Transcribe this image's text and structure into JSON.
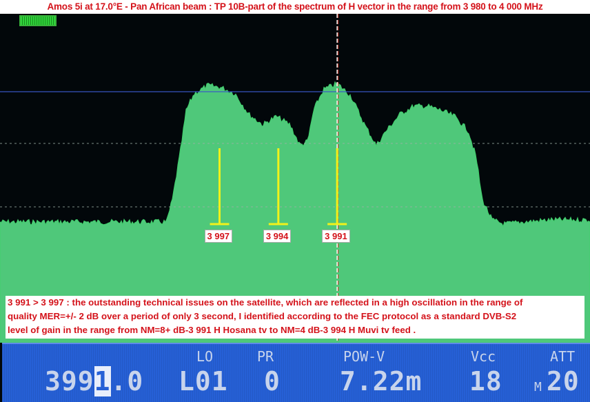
{
  "title": "Amos 5i at 17.0°E - Pan African beam : TP 10B-part of the spectrum of H vector in the range from 3 980 to 4 000 MHz",
  "chart_data": {
    "type": "area",
    "title": "Amos 5i at 17.0°E - Pan African beam : TP 10B-part of the spectrum of H vector in the range from 3 980 to 4 000 MHz",
    "xlabel": "",
    "ylabel": "",
    "x_unit": "MHz",
    "x_direction": "descending left to right",
    "xlim": [
      4008.2,
      3978.1
    ],
    "ylim": [
      0,
      100
    ],
    "y_unit": "relative level",
    "grid": true,
    "colors": {
      "trace": "#3fcf6a",
      "fill": "#4fc87a",
      "background": "#02070a",
      "marker": "#f2f21a",
      "cursor": "#ffffff"
    },
    "x": [
      4008.2,
      3999.7,
      3999.4,
      3999.0,
      3998.7,
      3998.3,
      3997.6,
      3996.9,
      3996.2,
      3995.5,
      3994.8,
      3994.1,
      3993.4,
      3992.9,
      3992.5,
      3992.2,
      3991.7,
      3991.0,
      3990.3,
      3989.6,
      3989.0,
      3988.5,
      3987.8,
      3987.1,
      3986.4,
      3985.7,
      3985.0,
      3984.3,
      3983.9,
      3983.6,
      3983.1,
      3982.5,
      3981.5,
      3980.1,
      3978.1
    ],
    "y": [
      26,
      26,
      37,
      60,
      80,
      88,
      92,
      91,
      88,
      78,
      73,
      77,
      73,
      63,
      65,
      80,
      90,
      93,
      87,
      73,
      63,
      70,
      78,
      82,
      82,
      80,
      77,
      70,
      57,
      37,
      27,
      25,
      26,
      27,
      27
    ],
    "cursor_mhz": 3991,
    "markers": [
      {
        "label": "3 997",
        "mhz": 3997
      },
      {
        "label": "3 994",
        "mhz": 3994
      },
      {
        "label": "3 991",
        "mhz": 3991
      }
    ]
  },
  "note": {
    "lines": [
      "3 991 > 3 997 :  the outstanding technical issues on the satellite, which are reflected in a high oscillation in the range of",
      "quality MER=+/- 2 dB over a period of only 3 second, I identified according to the FEC protocol as a standard DVB-S2",
      "level of gain in the range from NM=8+ dB-3 991 H Hosana tv to NM=4 dB-3 994 H Muvi tv feed ."
    ]
  },
  "panel": {
    "freq_prefix": "399",
    "freq_cursor_digit": "1",
    "freq_suffix": ".0",
    "lo_label": "LO",
    "lo_value": "L01",
    "pr_label": "PR",
    "pr_value": "0",
    "pow_label": "POW-V",
    "pow_value": "7.22m",
    "vcc_label": "Vcc",
    "vcc_value": "18",
    "att_label": "ATT",
    "att_prefix": "M",
    "att_value": "20"
  }
}
